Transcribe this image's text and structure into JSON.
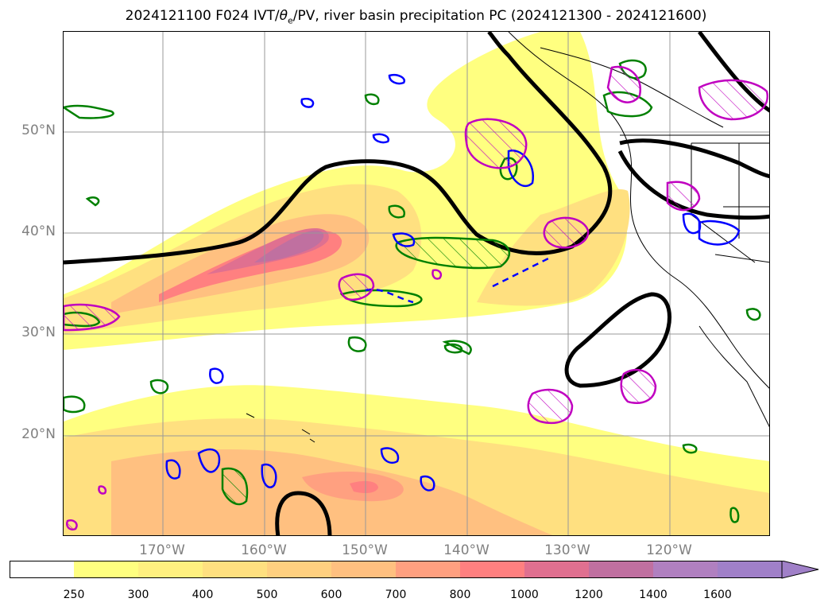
{
  "title": {
    "prefix": "2024121100 F024 IVT/",
    "theta_symbol": "θ",
    "theta_sub": "e",
    "suffix": "/PV, river basin precipitation PC (2024121300 - 2024121600)"
  },
  "map": {
    "lat_labels": [
      "50°N",
      "40°N",
      "30°N",
      "20°N"
    ],
    "lon_labels": [
      "170°W",
      "160°W",
      "150°W",
      "140°W",
      "130°W",
      "120°W"
    ],
    "contour_colors": {
      "theta_e": "#000000",
      "pv_positive": "#008000",
      "pv_negative": "#0000ff",
      "precip": "#c000c0"
    }
  },
  "colorbar": {
    "levels": [
      "250",
      "300",
      "400",
      "500",
      "600",
      "700",
      "800",
      "1000",
      "1200",
      "1400",
      "1600"
    ],
    "colors": [
      "#ffffff",
      "#ffff80",
      "#fff080",
      "#ffe080",
      "#ffd080",
      "#ffc080",
      "#ffa080",
      "#ff8080",
      "#e07090",
      "#c070a0",
      "#b080c0",
      "#a080c8"
    ],
    "extend": "max"
  }
}
